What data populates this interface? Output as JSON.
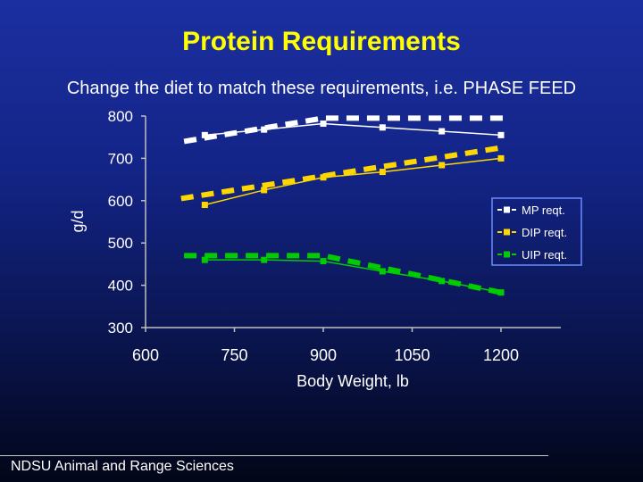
{
  "slide": {
    "title": "Protein Requirements",
    "subtitle": "Change the diet to match these requirements, i.e. PHASE FEED",
    "footer": "NDSU Animal and Range Sciences"
  },
  "colors": {
    "title": "#ffff00",
    "axis_text": "#ffffff",
    "grid": "#c0c0c0",
    "mp": "#ffffff",
    "dip": "#ffd700",
    "uip": "#00cc00",
    "legend_border": "#6a8cff"
  },
  "chart_data": {
    "type": "line",
    "xlabel": "Body Weight, lb",
    "ylabel": "g/d",
    "xlim": [
      600,
      1200
    ],
    "ylim": [
      300,
      800
    ],
    "xticks": [
      600,
      750,
      900,
      1050,
      1200
    ],
    "yticks": [
      300,
      400,
      500,
      600,
      700,
      800
    ],
    "legend_position": "right",
    "series": [
      {
        "name": "MP reqt.",
        "color": "#ffffff",
        "x": [
          700,
          800,
          900,
          1000,
          1100,
          1200
        ],
        "values": [
          755,
          768,
          782,
          773,
          764,
          755
        ]
      },
      {
        "name": "DIP reqt.",
        "color": "#ffd700",
        "x": [
          700,
          800,
          900,
          1000,
          1100,
          1200
        ],
        "values": [
          590,
          625,
          655,
          668,
          684,
          700
        ]
      },
      {
        "name": "UIP reqt.",
        "color": "#00cc00",
        "x": [
          700,
          800,
          900,
          1000,
          1100,
          1200
        ],
        "values": [
          460,
          460,
          457,
          433,
          410,
          383
        ]
      }
    ],
    "overlays": [
      {
        "series": "MP reqt.",
        "color": "#ffffff",
        "x": [
          665,
          900,
          1210
        ],
        "values": [
          740,
          795,
          795
        ]
      },
      {
        "series": "DIP reqt.",
        "color": "#ffd700",
        "x": [
          660,
          1200
        ],
        "values": [
          605,
          725
        ]
      },
      {
        "series": "UIP reqt.",
        "color": "#00cc00",
        "x": [
          665,
          900,
          1210
        ],
        "values": [
          470,
          470,
          380
        ]
      }
    ]
  }
}
